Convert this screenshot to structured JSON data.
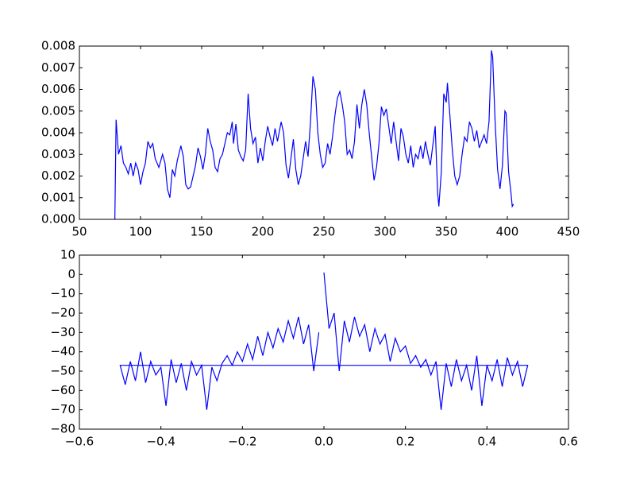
{
  "chart_data": [
    {
      "type": "line",
      "x": [
        79,
        80,
        82,
        84,
        86,
        88,
        90,
        92,
        94,
        96,
        98,
        100,
        102,
        104,
        106,
        108,
        110,
        112,
        115,
        118,
        120,
        122,
        124,
        126,
        128,
        130,
        133,
        135,
        137,
        139,
        141,
        143,
        145,
        147,
        149,
        151,
        153,
        155,
        157,
        159,
        161,
        163,
        165,
        167,
        169,
        171,
        173,
        175,
        176,
        178,
        180,
        182,
        184,
        186,
        188,
        190,
        192,
        194,
        196,
        198,
        200,
        202,
        204,
        206,
        208,
        210,
        212,
        215,
        217,
        219,
        221,
        223,
        225,
        227,
        229,
        231,
        233,
        235,
        237,
        239,
        241,
        243,
        245,
        247,
        249,
        251,
        253,
        255,
        257,
        259,
        261,
        263,
        265,
        267,
        269,
        271,
        273,
        275,
        277,
        279,
        281,
        283,
        285,
        287,
        289,
        291,
        293,
        295,
        297,
        299,
        301,
        303,
        305,
        307,
        309,
        311,
        313,
        315,
        317,
        319,
        321,
        323,
        325,
        327,
        329,
        331,
        333,
        335,
        337,
        339,
        341,
        343,
        344,
        346,
        348,
        350,
        351,
        353,
        355,
        357,
        359,
        361,
        363,
        365,
        367,
        369,
        371,
        373,
        375,
        377,
        379,
        381,
        383,
        385,
        387,
        388,
        390,
        392,
        394,
        396,
        398,
        399,
        401,
        403,
        404,
        405
      ],
      "series": [
        {
          "color": "#0000ff",
          "values": [
            0,
            0.0046,
            0.003,
            0.0034,
            0.0026,
            0.0024,
            0.0021,
            0.0026,
            0.002,
            0.0026,
            0.0023,
            0.0016,
            0.0022,
            0.0026,
            0.0036,
            0.0033,
            0.0035,
            0.0028,
            0.0024,
            0.003,
            0.0026,
            0.0014,
            0.001,
            0.0023,
            0.002,
            0.0027,
            0.0034,
            0.0029,
            0.0016,
            0.0014,
            0.0015,
            0.002,
            0.0025,
            0.0033,
            0.0029,
            0.0023,
            0.003,
            0.0042,
            0.0036,
            0.0032,
            0.0024,
            0.0022,
            0.0028,
            0.003,
            0.0035,
            0.004,
            0.0039,
            0.0045,
            0.0035,
            0.0044,
            0.0032,
            0.0029,
            0.0027,
            0.0032,
            0.0058,
            0.0042,
            0.0035,
            0.0038,
            0.0026,
            0.0033,
            0.0027,
            0.0036,
            0.0043,
            0.0038,
            0.0034,
            0.0042,
            0.0036,
            0.0045,
            0.004,
            0.0025,
            0.0019,
            0.0028,
            0.0037,
            0.0023,
            0.0016,
            0.002,
            0.0028,
            0.0036,
            0.0029,
            0.0045,
            0.0066,
            0.006,
            0.004,
            0.003,
            0.0024,
            0.0026,
            0.0035,
            0.003,
            0.0038,
            0.0048,
            0.0056,
            0.0059,
            0.0053,
            0.0045,
            0.003,
            0.0032,
            0.0028,
            0.0036,
            0.0053,
            0.0042,
            0.0053,
            0.006,
            0.0053,
            0.004,
            0.0029,
            0.0018,
            0.0024,
            0.0035,
            0.0052,
            0.0048,
            0.0051,
            0.0043,
            0.0035,
            0.0045,
            0.0036,
            0.0027,
            0.0042,
            0.0038,
            0.003,
            0.0026,
            0.0034,
            0.0024,
            0.003,
            0.0028,
            0.0034,
            0.0028,
            0.0036,
            0.003,
            0.0025,
            0.0034,
            0.0043,
            0.0012,
            0.0006,
            0.0022,
            0.0058,
            0.0054,
            0.0063,
            0.0048,
            0.0032,
            0.002,
            0.0016,
            0.002,
            0.003,
            0.0038,
            0.0036,
            0.0045,
            0.0042,
            0.0036,
            0.0041,
            0.0033,
            0.0036,
            0.0039,
            0.0035,
            0.0045,
            0.0078,
            0.0075,
            0.0045,
            0.0023,
            0.0014,
            0.0025,
            0.005,
            0.0049,
            0.0022,
            0.0012,
            0.0006,
            0.0007
          ]
        }
      ],
      "xlim": [
        50,
        450
      ],
      "xticks": [
        50,
        100,
        150,
        200,
        250,
        300,
        350,
        400,
        450
      ],
      "ylim": [
        0,
        0.008
      ],
      "yticks": [
        {
          "value": 0,
          "label": "0.000"
        },
        {
          "value": 0.001,
          "label": "0.001"
        },
        {
          "value": 0.002,
          "label": "0.002"
        },
        {
          "value": 0.003,
          "label": "0.003"
        },
        {
          "value": 0.004,
          "label": "0.004"
        },
        {
          "value": 0.005,
          "label": "0.005"
        },
        {
          "value": 0.006,
          "label": "0.006"
        },
        {
          "value": 0.007,
          "label": "0.007"
        },
        {
          "value": 0.008,
          "label": "0.008"
        }
      ]
    },
    {
      "type": "line",
      "x": [
        0,
        0.0125,
        0.025,
        0.0375,
        0.05,
        0.0625,
        0.075,
        0.0875,
        0.1,
        0.1125,
        0.125,
        0.1375,
        0.15,
        0.1625,
        0.175,
        0.1875,
        0.2,
        0.2125,
        0.225,
        0.2375,
        0.25,
        0.2625,
        0.275,
        0.2875,
        0.3,
        0.3125,
        0.325,
        0.3375,
        0.35,
        0.3625,
        0.375,
        0.3875,
        0.4,
        0.4125,
        0.425,
        0.4375,
        0.45,
        0.4625,
        0.475,
        0.4875,
        0.5,
        -0.5,
        -0.4875,
        -0.475,
        -0.4625,
        -0.45,
        -0.4375,
        -0.425,
        -0.4125,
        -0.4,
        -0.3875,
        -0.375,
        -0.3625,
        -0.35,
        -0.3375,
        -0.325,
        -0.3125,
        -0.3,
        -0.2875,
        -0.275,
        -0.2625,
        -0.25,
        -0.2375,
        -0.225,
        -0.2125,
        -0.2,
        -0.1875,
        -0.175,
        -0.1625,
        -0.15,
        -0.1375,
        -0.125,
        -0.1125,
        -0.1,
        -0.0875,
        -0.075,
        -0.0625,
        -0.05,
        -0.0375,
        -0.025,
        -0.0125
      ],
      "series": [
        {
          "color": "#0000ff",
          "values": [
            1,
            -28,
            -20,
            -50,
            -24,
            -35,
            -22,
            -32,
            -26,
            -40,
            -28,
            -36,
            -31,
            -45,
            -33,
            -40,
            -37,
            -46,
            -42,
            -48,
            -44,
            -52,
            -45,
            -70,
            -46,
            -58,
            -44,
            -55,
            -47,
            -60,
            -42,
            -68,
            -47,
            -55,
            -44,
            -58,
            -43,
            -52,
            -45,
            -58,
            -47,
            -47,
            -57,
            -45,
            -55,
            -40,
            -56,
            -45,
            -52,
            -48,
            -68,
            -44,
            -56,
            -46,
            -60,
            -45,
            -52,
            -47,
            -70,
            -48,
            -55,
            -46,
            -42,
            -47,
            -40,
            -45,
            -36,
            -44,
            -32,
            -42,
            -30,
            -38,
            -28,
            -35,
            -24,
            -33,
            -22,
            -36,
            -26,
            -50,
            -30
          ]
        }
      ],
      "xlim": [
        -0.6,
        0.6
      ],
      "xticks": [
        {
          "value": -0.6,
          "label": "−0.6"
        },
        {
          "value": -0.4,
          "label": "−0.4"
        },
        {
          "value": -0.2,
          "label": "−0.2"
        },
        {
          "value": 0,
          "label": "0.0"
        },
        0.2,
        0.4,
        0.6
      ],
      "ylim": [
        -80,
        10
      ],
      "yticks": [
        {
          "value": -80,
          "label": "−80"
        },
        {
          "value": -70,
          "label": "−70"
        },
        {
          "value": -60,
          "label": "−60"
        },
        {
          "value": -50,
          "label": "−50"
        },
        {
          "value": -40,
          "label": "−40"
        },
        {
          "value": -30,
          "label": "−30"
        },
        {
          "value": -20,
          "label": "−20"
        },
        {
          "value": -10,
          "label": "−10"
        },
        0,
        10
      ]
    }
  ]
}
